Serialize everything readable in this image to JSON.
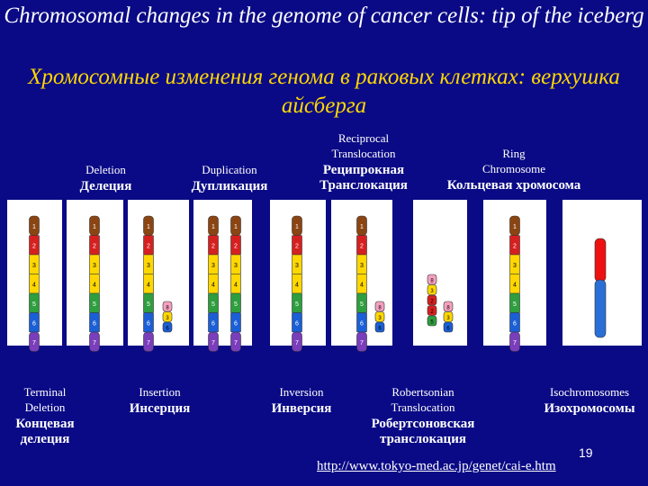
{
  "title_en": "Chromosomal changes in the genome of cancer cells: tip of the iceberg",
  "title_ru": "Хромосомные изменения генома в раковых клетках: верхушка айсберга",
  "labels_top": [
    {
      "en": "Deletion",
      "ru": "Делеция"
    },
    {
      "en": "Duplication",
      "ru": "Дупликация"
    },
    {
      "en": "Reciprocal Translocation",
      "ru": "Реципрокная Транслокация"
    },
    {
      "en": "Ring Chromosome",
      "ru": "Кольцевая хромосома"
    }
  ],
  "labels_bottom": [
    {
      "en": "Terminal Deletion",
      "ru": "Концевая делеция"
    },
    {
      "en": "Insertion",
      "ru": "Инсерция"
    },
    {
      "en": "Inversion",
      "ru": "Инверсия"
    },
    {
      "en": "Robertsonian Translocation",
      "ru": "Робертсоновская транслокация"
    },
    {
      "en": "Isochromosomes",
      "ru": "Изохромосомы"
    }
  ],
  "band_numbers": [
    "1",
    "2",
    "3",
    "4",
    "5",
    "6",
    "7",
    "8"
  ],
  "band_colors": [
    "#8b4513",
    "#d62020",
    "#ffd700",
    "#ffd700",
    "#2e9e3e",
    "#1a5fd6",
    "#7a3dbb",
    "#f5a0c0"
  ],
  "page_number": "19",
  "url": "http://www.tokyo-med.ac.jp/genet/cai-e.htm"
}
